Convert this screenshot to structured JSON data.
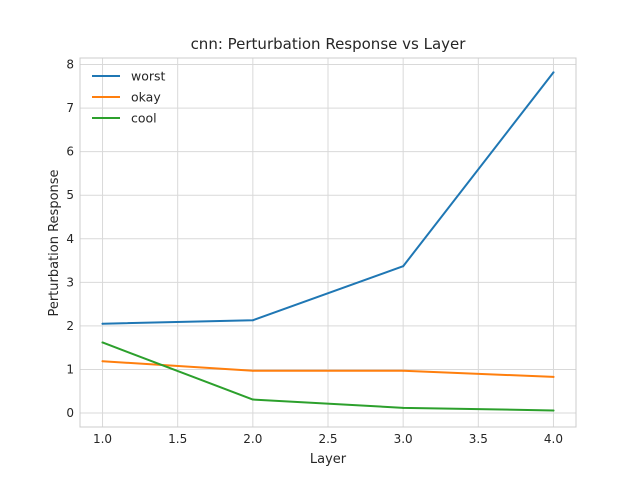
{
  "chart_data": {
    "type": "line",
    "title": "cnn: Perturbation Response vs Layer",
    "xlabel": "Layer",
    "ylabel": "Perturbation Response",
    "xlim": [
      0.85,
      4.15
    ],
    "ylim": [
      -0.32,
      8.15
    ],
    "x_ticks": [
      1.0,
      1.5,
      2.0,
      2.5,
      3.0,
      3.5,
      4.0
    ],
    "x_tick_labels": [
      "1.0",
      "1.5",
      "2.0",
      "2.5",
      "3.0",
      "3.5",
      "4.0"
    ],
    "y_ticks": [
      0,
      1,
      2,
      3,
      4,
      5,
      6,
      7,
      8
    ],
    "y_tick_labels": [
      "0",
      "1",
      "2",
      "3",
      "4",
      "5",
      "6",
      "7",
      "8"
    ],
    "grid": true,
    "legend_position": "top-left",
    "x": [
      1.0,
      2.0,
      3.0,
      4.0
    ],
    "series": [
      {
        "name": "worst",
        "color": "#1f77b4",
        "values": [
          2.05,
          2.13,
          3.37,
          7.82
        ]
      },
      {
        "name": "okay",
        "color": "#ff7f0e",
        "values": [
          1.19,
          0.97,
          0.97,
          0.83
        ]
      },
      {
        "name": "cool",
        "color": "#2ca02c",
        "values": [
          1.62,
          0.31,
          0.12,
          0.06
        ]
      }
    ]
  }
}
